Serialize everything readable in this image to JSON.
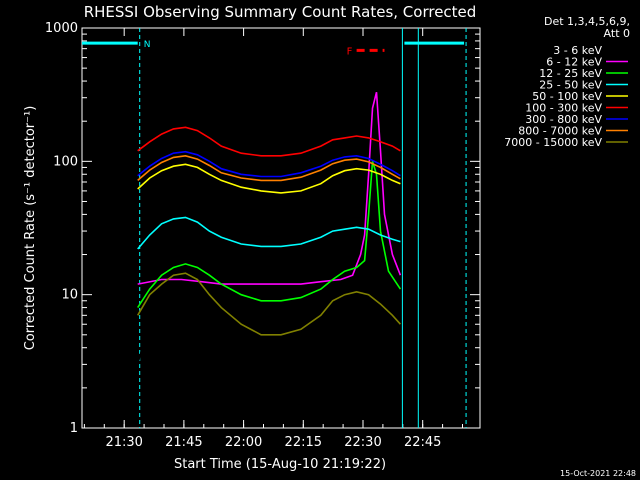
{
  "chart_data": {
    "type": "line",
    "title": "RHESSI Observing Summary Count Rates, Corrected",
    "xlabel": "Start Time (15-Aug-10 21:19:22)",
    "ylabel": "Corrected Count Rate (s⁻¹ detector⁻¹)",
    "yscale": "log",
    "ylim": [
      1,
      1000
    ],
    "xlim_minutes": [
      0,
      100
    ],
    "x_unit": "minutes after 21:19:22",
    "x_ticks": [
      {
        "label": "21:30",
        "min": 10.6
      },
      {
        "label": "21:45",
        "min": 25.6
      },
      {
        "label": "22:00",
        "min": 40.6
      },
      {
        "label": "22:15",
        "min": 55.6
      },
      {
        "label": "22:30",
        "min": 70.6
      },
      {
        "label": "22:45",
        "min": 85.6
      }
    ],
    "y_ticks": [
      {
        "label": "1",
        "value": 1
      },
      {
        "label": "10",
        "value": 10
      },
      {
        "label": "100",
        "value": 100
      },
      {
        "label": "1000",
        "value": 1000
      }
    ],
    "legend_header": [
      "Det 1,3,4,5,6,9,",
      "Att 0"
    ],
    "legend_position": "right",
    "series": [
      {
        "name": "3 - 6 keV",
        "color": "#000000",
        "points": [
          [
            14,
            3
          ],
          [
            16,
            5
          ],
          [
            19,
            7
          ],
          [
            22,
            7.5
          ],
          [
            25,
            7
          ],
          [
            28,
            6
          ],
          [
            31,
            4.5
          ],
          [
            35,
            3.4
          ],
          [
            40,
            3
          ],
          [
            45,
            2.8
          ],
          [
            50,
            2.7
          ],
          [
            54,
            3
          ],
          [
            57,
            4
          ],
          [
            60,
            5.5
          ],
          [
            63,
            7
          ],
          [
            66,
            7.5
          ],
          [
            69,
            6
          ],
          [
            71,
            7
          ],
          [
            72,
            9
          ],
          [
            74,
            10
          ],
          [
            76,
            8
          ],
          [
            78,
            6
          ],
          [
            80,
            4
          ]
        ]
      },
      {
        "name": "6 - 12 keV",
        "color": "#ff00ff",
        "points": [
          [
            14,
            12
          ],
          [
            20,
            13
          ],
          [
            25,
            13
          ],
          [
            30,
            12.5
          ],
          [
            35,
            12
          ],
          [
            40,
            12
          ],
          [
            45,
            12
          ],
          [
            50,
            12
          ],
          [
            55,
            12
          ],
          [
            60,
            12.5
          ],
          [
            65,
            13
          ],
          [
            68,
            14
          ],
          [
            70,
            20
          ],
          [
            71,
            28
          ],
          [
            72,
            80
          ],
          [
            73,
            250
          ],
          [
            74,
            330
          ],
          [
            75,
            120
          ],
          [
            76,
            40
          ],
          [
            78,
            20
          ],
          [
            80,
            14
          ]
        ]
      },
      {
        "name": "12 - 25 keV",
        "color": "#00ff00",
        "points": [
          [
            14,
            8
          ],
          [
            17,
            11
          ],
          [
            20,
            14
          ],
          [
            23,
            16
          ],
          [
            26,
            17
          ],
          [
            29,
            16
          ],
          [
            32,
            14
          ],
          [
            35,
            12
          ],
          [
            40,
            10
          ],
          [
            45,
            9
          ],
          [
            50,
            9
          ],
          [
            55,
            9.5
          ],
          [
            60,
            11
          ],
          [
            63,
            13
          ],
          [
            66,
            15
          ],
          [
            69,
            16
          ],
          [
            71,
            18
          ],
          [
            72,
            40
          ],
          [
            73,
            100
          ],
          [
            74,
            80
          ],
          [
            75,
            30
          ],
          [
            77,
            15
          ],
          [
            80,
            11
          ]
        ]
      },
      {
        "name": "25 - 50 keV",
        "color": "#00ffff",
        "points": [
          [
            14,
            22
          ],
          [
            17,
            28
          ],
          [
            20,
            34
          ],
          [
            23,
            37
          ],
          [
            26,
            38
          ],
          [
            29,
            35
          ],
          [
            32,
            30
          ],
          [
            35,
            27
          ],
          [
            40,
            24
          ],
          [
            45,
            23
          ],
          [
            50,
            23
          ],
          [
            55,
            24
          ],
          [
            60,
            27
          ],
          [
            63,
            30
          ],
          [
            66,
            31
          ],
          [
            69,
            32
          ],
          [
            72,
            31
          ],
          [
            75,
            28
          ],
          [
            78,
            26
          ],
          [
            80,
            25
          ]
        ]
      },
      {
        "name": "50 - 100 keV",
        "color": "#ffff00",
        "points": [
          [
            14,
            62
          ],
          [
            17,
            75
          ],
          [
            20,
            85
          ],
          [
            23,
            92
          ],
          [
            26,
            95
          ],
          [
            29,
            90
          ],
          [
            32,
            80
          ],
          [
            35,
            72
          ],
          [
            40,
            64
          ],
          [
            45,
            60
          ],
          [
            50,
            58
          ],
          [
            55,
            60
          ],
          [
            60,
            68
          ],
          [
            63,
            78
          ],
          [
            66,
            85
          ],
          [
            69,
            88
          ],
          [
            72,
            86
          ],
          [
            75,
            80
          ],
          [
            78,
            72
          ],
          [
            80,
            68
          ]
        ]
      },
      {
        "name": "100 - 300 keV",
        "color": "#ff0000",
        "points": [
          [
            14,
            120
          ],
          [
            17,
            140
          ],
          [
            20,
            160
          ],
          [
            23,
            175
          ],
          [
            26,
            180
          ],
          [
            29,
            170
          ],
          [
            32,
            150
          ],
          [
            35,
            130
          ],
          [
            40,
            115
          ],
          [
            45,
            110
          ],
          [
            50,
            110
          ],
          [
            55,
            115
          ],
          [
            60,
            130
          ],
          [
            63,
            145
          ],
          [
            66,
            150
          ],
          [
            69,
            155
          ],
          [
            72,
            150
          ],
          [
            75,
            140
          ],
          [
            78,
            130
          ],
          [
            80,
            120
          ]
        ]
      },
      {
        "name": "300 - 800 keV",
        "color": "#0000ff",
        "points": [
          [
            14,
            78
          ],
          [
            17,
            92
          ],
          [
            20,
            105
          ],
          [
            23,
            115
          ],
          [
            26,
            118
          ],
          [
            29,
            112
          ],
          [
            32,
            100
          ],
          [
            35,
            88
          ],
          [
            40,
            80
          ],
          [
            45,
            77
          ],
          [
            50,
            77
          ],
          [
            55,
            82
          ],
          [
            60,
            92
          ],
          [
            63,
            102
          ],
          [
            66,
            108
          ],
          [
            69,
            110
          ],
          [
            72,
            105
          ],
          [
            75,
            95
          ],
          [
            78,
            85
          ],
          [
            80,
            78
          ]
        ]
      },
      {
        "name": "800 - 7000 keV",
        "color": "#ff8000",
        "points": [
          [
            14,
            72
          ],
          [
            17,
            86
          ],
          [
            20,
            98
          ],
          [
            23,
            107
          ],
          [
            26,
            110
          ],
          [
            29,
            104
          ],
          [
            32,
            93
          ],
          [
            35,
            82
          ],
          [
            40,
            75
          ],
          [
            45,
            72
          ],
          [
            50,
            72
          ],
          [
            55,
            76
          ],
          [
            60,
            86
          ],
          [
            63,
            96
          ],
          [
            66,
            102
          ],
          [
            69,
            104
          ],
          [
            72,
            99
          ],
          [
            75,
            90
          ],
          [
            78,
            80
          ],
          [
            80,
            74
          ]
        ]
      },
      {
        "name": "7000 - 15000 keV",
        "color": "#808000",
        "points": [
          [
            14,
            7
          ],
          [
            17,
            10
          ],
          [
            20,
            12
          ],
          [
            23,
            14
          ],
          [
            26,
            14.5
          ],
          [
            29,
            13
          ],
          [
            32,
            10
          ],
          [
            35,
            8
          ],
          [
            40,
            6
          ],
          [
            45,
            5
          ],
          [
            50,
            5
          ],
          [
            55,
            5.5
          ],
          [
            60,
            7
          ],
          [
            63,
            9
          ],
          [
            66,
            10
          ],
          [
            69,
            10.5
          ],
          [
            72,
            10
          ],
          [
            75,
            8.5
          ],
          [
            78,
            7
          ],
          [
            80,
            6
          ]
        ]
      }
    ],
    "annotations": [
      {
        "text": "N",
        "color": "#00ffff"
      },
      {
        "text": "F",
        "color": "#ff0000"
      }
    ],
    "attenuator_bars": [
      {
        "color": "#00ffff",
        "x0": 0,
        "x1": 14,
        "y": 770
      },
      {
        "color": "#00ffff",
        "x0": 81,
        "x1": 96,
        "y": 770
      }
    ],
    "flare_bar": {
      "color": "#ff0000",
      "x0": 69,
      "x1": 76,
      "y": 680
    },
    "vlines": [
      {
        "min": 14.5,
        "color": "#00ffff",
        "dash": true
      },
      {
        "min": 80.5,
        "color": "#00ffff",
        "dash": false
      },
      {
        "min": 84.5,
        "color": "#00ffff",
        "dash": false
      },
      {
        "min": 96.5,
        "color": "#00ffff",
        "dash": true
      }
    ]
  },
  "footer_timestamp": "15-Oct-2021 22:48"
}
